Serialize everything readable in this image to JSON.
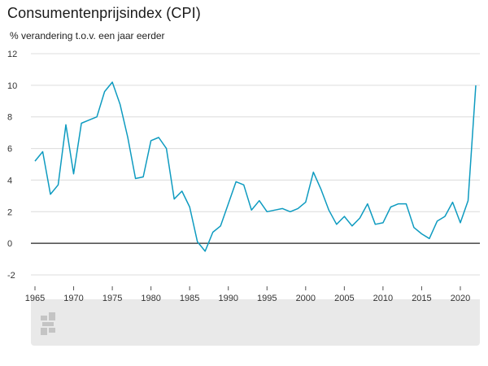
{
  "chart_data": {
    "type": "line",
    "title": "Consumentenprijsindex (CPI)",
    "subtitle": "% verandering t.o.v. een jaar eerder",
    "xlabel": "",
    "ylabel": "",
    "ylim": [
      -2,
      12
    ],
    "xlim": [
      1965,
      2022
    ],
    "y_ticks": [
      12,
      10,
      8,
      6,
      4,
      2,
      0,
      -2
    ],
    "x_ticks": [
      1965,
      1970,
      1975,
      1980,
      1985,
      1990,
      1995,
      2000,
      2005,
      2010,
      2015,
      2020
    ],
    "grid": true,
    "color": "#0e9bc0",
    "x": [
      1965,
      1966,
      1967,
      1968,
      1969,
      1970,
      1971,
      1972,
      1973,
      1974,
      1975,
      1976,
      1977,
      1978,
      1979,
      1980,
      1981,
      1982,
      1983,
      1984,
      1985,
      1986,
      1987,
      1988,
      1989,
      1990,
      1991,
      1992,
      1993,
      1994,
      1995,
      1996,
      1997,
      1998,
      1999,
      2000,
      2001,
      2002,
      2003,
      2004,
      2005,
      2006,
      2007,
      2008,
      2009,
      2010,
      2011,
      2012,
      2013,
      2014,
      2015,
      2016,
      2017,
      2018,
      2019,
      2020,
      2021,
      2022
    ],
    "values": [
      5.2,
      5.8,
      3.1,
      3.7,
      7.5,
      4.4,
      7.6,
      7.8,
      8.0,
      9.6,
      10.2,
      8.8,
      6.7,
      4.1,
      4.2,
      6.5,
      6.7,
      6.0,
      2.8,
      3.3,
      2.3,
      0.1,
      -0.5,
      0.7,
      1.1,
      2.5,
      3.9,
      3.7,
      2.1,
      2.7,
      2.0,
      2.1,
      2.2,
      2.0,
      2.2,
      2.6,
      4.5,
      3.4,
      2.1,
      1.2,
      1.7,
      1.1,
      1.6,
      2.5,
      1.2,
      1.3,
      2.3,
      2.5,
      2.5,
      1.0,
      0.6,
      0.3,
      1.4,
      1.7,
      2.6,
      1.3,
      2.7,
      10.0
    ]
  }
}
